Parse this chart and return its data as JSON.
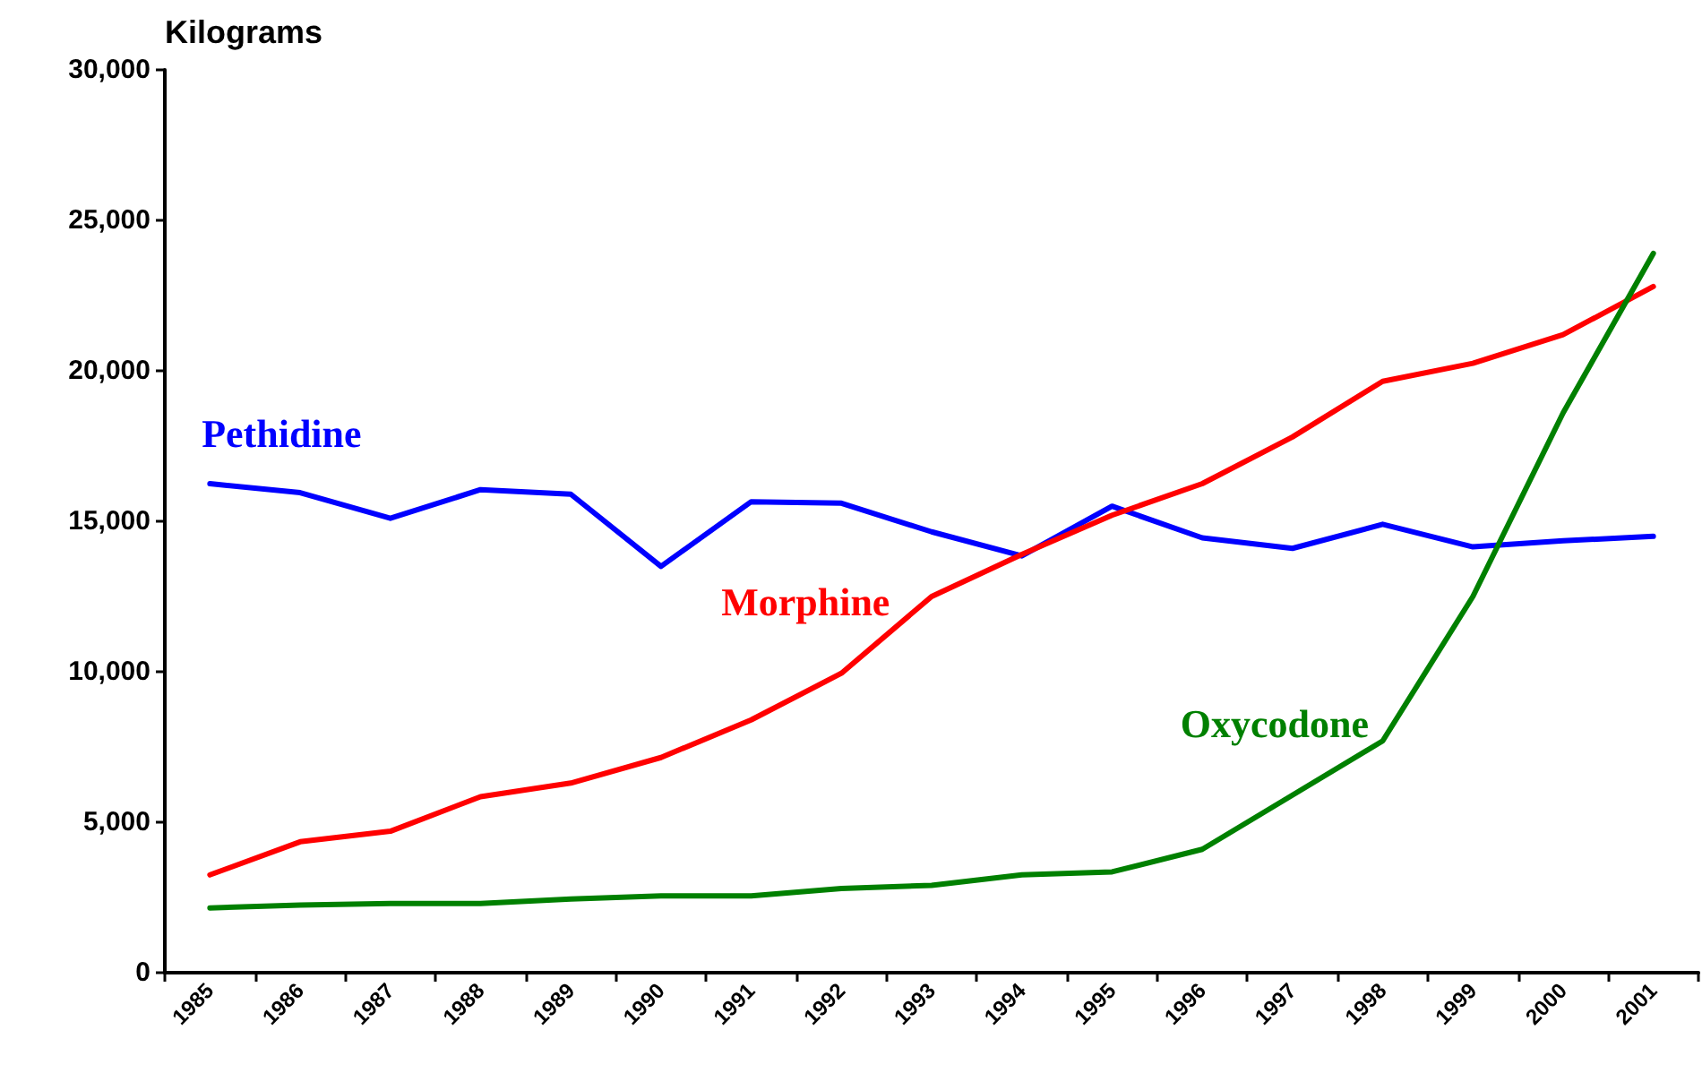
{
  "chart_data": {
    "type": "line",
    "ylabel": "Kilograms",
    "categories": [
      "1985",
      "1986",
      "1987",
      "1988",
      "1989",
      "1990",
      "1991",
      "1992",
      "1993",
      "1994",
      "1995",
      "1996",
      "1997",
      "1998",
      "1999",
      "2000",
      "2001"
    ],
    "series": [
      {
        "name": "Pethidine",
        "color": "#0000ff",
        "values": [
          16250,
          15950,
          15100,
          16050,
          15900,
          13500,
          15650,
          15600,
          14650,
          13850,
          15500,
          14450,
          14100,
          14900,
          14150,
          14350,
          14500
        ]
      },
      {
        "name": "Morphine",
        "color": "#ff0000",
        "values": [
          3250,
          4350,
          4700,
          5850,
          6300,
          7150,
          8400,
          9950,
          12500,
          13900,
          15200,
          16250,
          17800,
          19650,
          20250,
          21200,
          22800
        ]
      },
      {
        "name": "Oxycodone",
        "color": "#008000",
        "values": [
          2150,
          2250,
          2300,
          2300,
          2450,
          2550,
          2550,
          2800,
          2900,
          3250,
          3350,
          4100,
          5900,
          7700,
          12500,
          18600,
          23900
        ]
      }
    ],
    "ylim": [
      0,
      30000
    ],
    "yticks": [
      0,
      {
        "value": 5000,
        "label": "5,000"
      },
      {
        "value": 10000,
        "label": "10,000"
      },
      {
        "value": 15000,
        "label": "15,000"
      },
      {
        "value": 20000,
        "label": "20,000"
      },
      {
        "value": 25000,
        "label": "25,000"
      },
      {
        "value": 30000,
        "label": "30,000"
      }
    ],
    "grid": false,
    "legend": false,
    "marker": "none",
    "line_style": "solid"
  }
}
